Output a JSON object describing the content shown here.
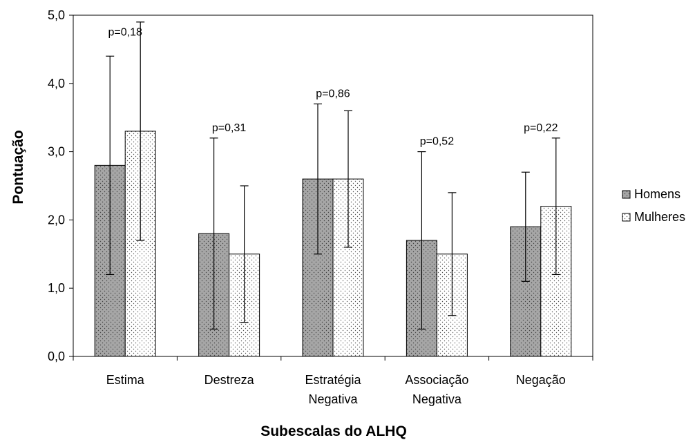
{
  "chart_data": {
    "type": "bar",
    "xlabel": "Subescalas do ALHQ",
    "ylabel": "Pontuação",
    "ylim": [
      0,
      5
    ],
    "yticks": [
      "0,0",
      "1,0",
      "2,0",
      "3,0",
      "4,0",
      "5,0"
    ],
    "grid": false,
    "legend_position": "right",
    "categories": [
      [
        "Estima"
      ],
      [
        "Destreza"
      ],
      [
        "Estratégia",
        "Negativa"
      ],
      [
        "Associação",
        "Negativa"
      ],
      [
        "Negação"
      ]
    ],
    "series": [
      {
        "name": "Homens",
        "values": [
          2.8,
          1.8,
          2.6,
          1.7,
          1.9
        ],
        "err_low": [
          1.2,
          0.4,
          1.5,
          0.4,
          1.1
        ],
        "err_high": [
          4.4,
          3.2,
          3.7,
          3.0,
          2.7
        ]
      },
      {
        "name": "Mulheres",
        "values": [
          3.3,
          1.5,
          2.6,
          1.5,
          2.2
        ],
        "err_low": [
          1.7,
          0.5,
          1.6,
          0.6,
          1.2
        ],
        "err_high": [
          4.9,
          2.5,
          3.6,
          2.4,
          3.2
        ]
      }
    ],
    "p_values": [
      "p=0,18",
      "p=0,31",
      "p=0,86",
      "p=0,52",
      "p=0,22"
    ],
    "p_value_y": [
      4.7,
      3.3,
      3.8,
      3.1,
      3.3
    ],
    "colors": {
      "homens": "#a6a6a6",
      "mulheres": "#ffffff",
      "outline": "#000000"
    }
  }
}
